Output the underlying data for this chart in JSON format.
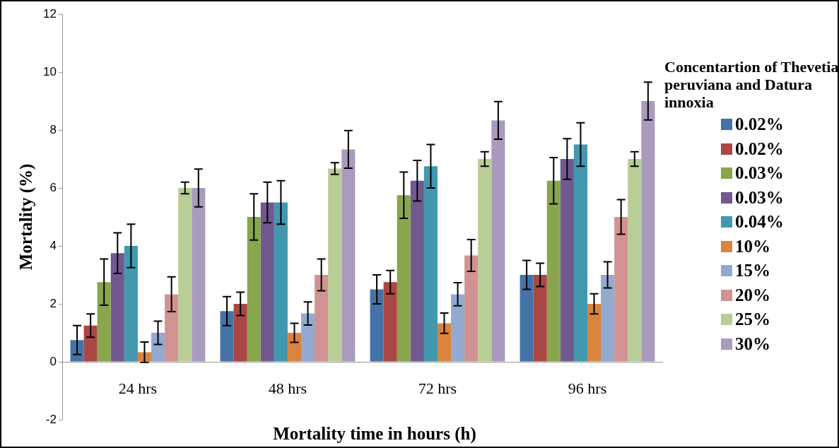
{
  "chart_data": {
    "type": "bar",
    "xlabel": "Mortality time in hours (h)",
    "ylabel": "Mortality (%)",
    "legend_title": "Concentartion of Thevetia peruviana and Datura innoxia",
    "legend": "right",
    "grid": false,
    "categories": [
      "24 hrs",
      "48 hrs",
      "72 hrs",
      "96 hrs"
    ],
    "ylim": [
      -2,
      12
    ],
    "yticks": [
      -2,
      0,
      2,
      4,
      6,
      8,
      10,
      12
    ],
    "series": [
      {
        "name": "0.02%",
        "color": "#4572a7",
        "values": [
          0.75,
          1.75,
          2.5,
          3
        ],
        "errors": [
          0.5,
          0.5,
          0.5,
          0.5
        ]
      },
      {
        "name": "0.02%",
        "color": "#aa4643",
        "values": [
          1.25,
          2,
          2.75,
          3
        ],
        "errors": [
          0.4,
          0.4,
          0.4,
          0.4
        ]
      },
      {
        "name": "0.03%",
        "color": "#89a54e",
        "values": [
          2.75,
          5,
          5.75,
          6.25
        ],
        "errors": [
          0.8,
          0.8,
          0.8,
          0.8
        ]
      },
      {
        "name": "0.03%",
        "color": "#71588f",
        "values": [
          3.75,
          5.5,
          6.25,
          7
        ],
        "errors": [
          0.7,
          0.7,
          0.7,
          0.7
        ]
      },
      {
        "name": "0.04%",
        "color": "#4198af",
        "values": [
          4,
          5.5,
          6.75,
          7.5
        ],
        "errors": [
          0.75,
          0.75,
          0.75,
          0.75
        ]
      },
      {
        "name": "10%",
        "color": "#db843d",
        "values": [
          0.33,
          1,
          1.33,
          2
        ],
        "errors": [
          0.35,
          0.33,
          0.35,
          0.35
        ]
      },
      {
        "name": "15%",
        "color": "#93a9cf",
        "values": [
          1,
          1.67,
          2.33,
          3
        ],
        "errors": [
          0.4,
          0.4,
          0.4,
          0.45
        ]
      },
      {
        "name": "20%",
        "color": "#d19392",
        "values": [
          2.33,
          3,
          3.67,
          5
        ],
        "errors": [
          0.6,
          0.55,
          0.55,
          0.6
        ]
      },
      {
        "name": "25%",
        "color": "#b9cd96",
        "values": [
          6,
          6.67,
          7,
          7
        ],
        "errors": [
          0.2,
          0.2,
          0.25,
          0.25
        ]
      },
      {
        "name": "30%",
        "color": "#a99bbd",
        "values": [
          6,
          7.33,
          8.33,
          9
        ],
        "errors": [
          0.65,
          0.65,
          0.65,
          0.65
        ]
      }
    ]
  }
}
